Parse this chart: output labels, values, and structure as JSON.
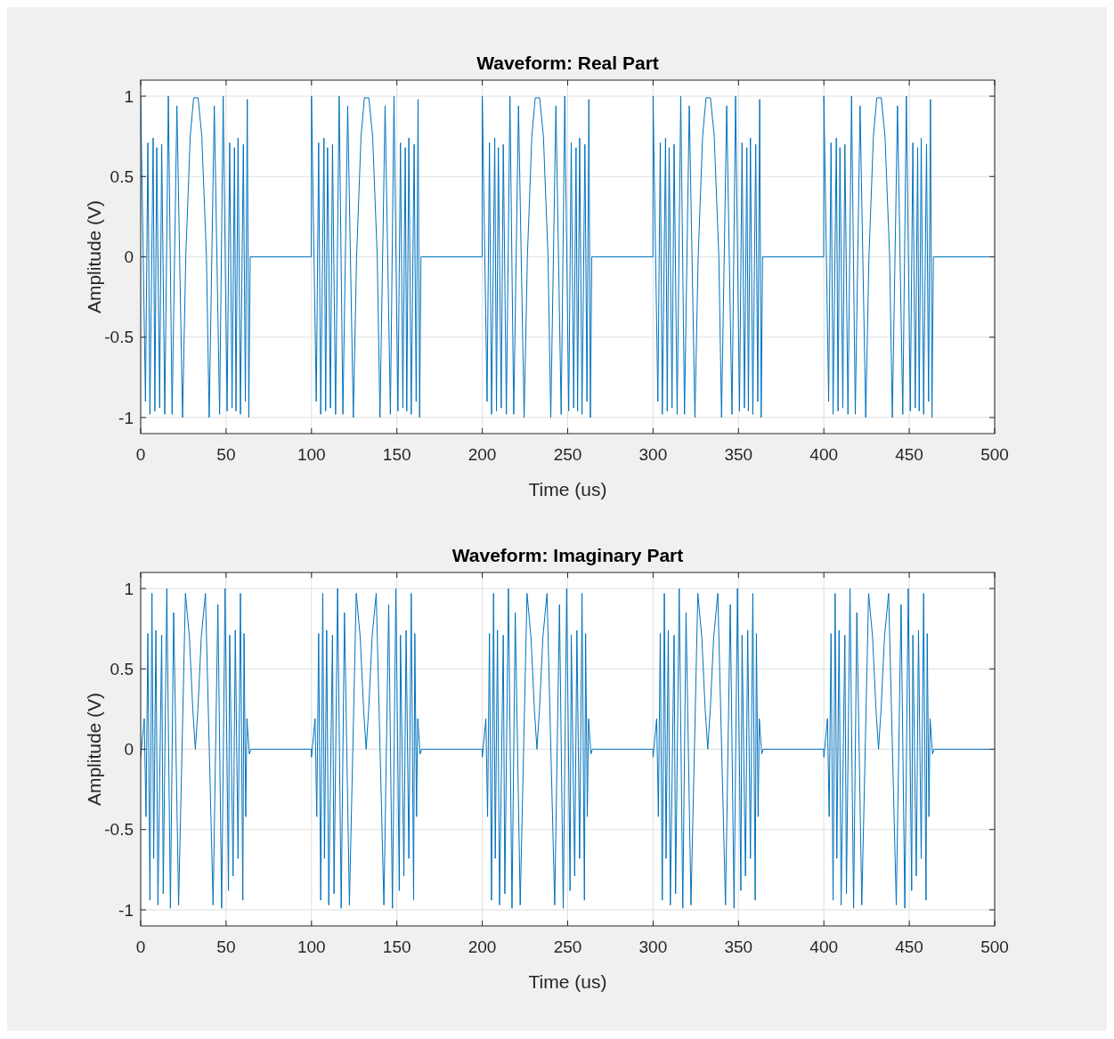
{
  "chart_data": [
    {
      "type": "line",
      "title": "Waveform: Real Part",
      "xlabel": "Time (us)",
      "ylabel": "Amplitude (V)",
      "xlim": [
        0,
        500
      ],
      "ylim": [
        -1.1,
        1.1
      ],
      "xticks": [
        0,
        50,
        100,
        150,
        200,
        250,
        300,
        350,
        400,
        450,
        500
      ],
      "yticks": [
        -1,
        -0.5,
        0,
        0.5,
        1
      ],
      "grid": true,
      "line_style": "solid",
      "marker": "none",
      "series": [
        {
          "color": "#0072bd",
          "x": [
            0,
            2.8,
            4.2,
            5.4,
            7.3,
            8.3,
            9.4,
            11.1,
            12.3,
            14.1,
            16.2,
            18.4,
            21.2,
            24.5,
            26.4,
            29,
            31,
            33.6,
            35.8,
            38.5,
            40.1,
            43.1,
            46.2,
            48.3,
            50.6,
            52.1,
            53.5,
            54.9,
            55.8,
            57,
            58.4,
            60.1,
            61.3,
            62.4,
            63.3,
            64.1,
            99.9,
            100,
            102.8,
            104.2,
            105.4,
            107.3,
            108.3,
            109.4,
            111.1,
            112.3,
            114.1,
            116.2,
            118.4,
            121.2,
            124.5,
            126.4,
            129,
            131,
            133.6,
            135.8,
            138.5,
            140.1,
            143.1,
            146.2,
            148.3,
            150.6,
            152.1,
            153.5,
            154.9,
            155.8,
            157,
            158.4,
            160.1,
            161.3,
            162.4,
            163.3,
            164.1,
            199.9,
            200,
            202.8,
            204.2,
            205.4,
            207.3,
            208.3,
            209.4,
            211.1,
            212.3,
            214.1,
            216.2,
            218.4,
            221.2,
            224.5,
            226.4,
            229,
            231,
            233.6,
            235.8,
            238.5,
            240.1,
            243.1,
            246.2,
            248.3,
            250.6,
            252.1,
            253.5,
            254.9,
            255.8,
            257,
            258.4,
            260.1,
            261.3,
            262.4,
            263.3,
            264.1,
            299.9,
            300,
            302.8,
            304.2,
            305.4,
            307.3,
            308.3,
            309.4,
            311.1,
            312.3,
            314.1,
            316.2,
            318.4,
            321.2,
            324.5,
            326.4,
            329,
            331,
            333.6,
            335.8,
            338.5,
            340.1,
            343.1,
            346.2,
            348.3,
            350.6,
            352.1,
            353.5,
            354.9,
            355.8,
            357,
            358.4,
            360.1,
            361.3,
            362.4,
            363.3,
            364.1,
            399.9,
            400,
            402.8,
            404.2,
            405.4,
            407.3,
            408.3,
            409.4,
            411.1,
            412.3,
            414.1,
            416.2,
            418.4,
            421.2,
            424.5,
            426.4,
            429,
            431,
            433.6,
            435.8,
            438.5,
            440.1,
            443.1,
            446.2,
            448.3,
            450.6,
            452.1,
            453.5,
            454.9,
            455.8,
            457,
            458.4,
            460.1,
            461.3,
            462.4,
            463.3,
            464.1,
            500
          ],
          "values": [
            1,
            -0.9,
            0.71,
            -0.98,
            0.74,
            -0.96,
            0.68,
            -0.94,
            0.7,
            -0.98,
            1,
            -0.98,
            0.94,
            -1,
            0,
            0.75,
            0.99,
            0.99,
            0.75,
            0,
            -1,
            0.94,
            -0.98,
            1,
            -0.96,
            0.71,
            -0.94,
            0.68,
            -0.96,
            0.74,
            -0.98,
            0.7,
            -0.9,
            0.98,
            -1,
            0,
            0,
            1,
            -0.9,
            0.71,
            -0.98,
            0.74,
            -0.96,
            0.68,
            -0.94,
            0.7,
            -0.98,
            1,
            -0.98,
            0.94,
            -1,
            0,
            0.75,
            0.99,
            0.99,
            0.75,
            0,
            -1,
            0.94,
            -0.98,
            1,
            -0.96,
            0.71,
            -0.94,
            0.68,
            -0.96,
            0.74,
            -0.98,
            0.7,
            -0.9,
            0.98,
            -1,
            0,
            0,
            1,
            -0.9,
            0.71,
            -0.98,
            0.74,
            -0.96,
            0.68,
            -0.94,
            0.7,
            -0.98,
            1,
            -0.98,
            0.94,
            -1,
            0,
            0.75,
            0.99,
            0.99,
            0.75,
            0,
            -1,
            0.94,
            -0.98,
            1,
            -0.96,
            0.71,
            -0.94,
            0.68,
            -0.96,
            0.74,
            -0.98,
            0.7,
            -0.9,
            0.98,
            -1,
            0,
            0,
            1,
            -0.9,
            0.71,
            -0.98,
            0.74,
            -0.96,
            0.68,
            -0.94,
            0.7,
            -0.98,
            1,
            -0.98,
            0.94,
            -1,
            0,
            0.75,
            0.99,
            0.99,
            0.75,
            0,
            -1,
            0.94,
            -0.98,
            1,
            -0.96,
            0.71,
            -0.94,
            0.68,
            -0.96,
            0.74,
            -0.98,
            0.7,
            -0.9,
            0.98,
            -1,
            0,
            0,
            1,
            -0.9,
            0.71,
            -0.98,
            0.74,
            -0.96,
            0.68,
            -0.94,
            0.7,
            -0.98,
            1,
            -0.98,
            0.94,
            -1,
            0,
            0.75,
            0.99,
            0.99,
            0.75,
            0,
            -1,
            0.94,
            -0.98,
            1,
            -0.96,
            0.71,
            -0.94,
            0.68,
            -0.96,
            0.74,
            -0.98,
            0.7,
            -0.9,
            0.98,
            -1,
            0,
            0
          ]
        }
      ]
    },
    {
      "type": "line",
      "title": "Waveform: Imaginary Part",
      "xlabel": "Time (us)",
      "ylabel": "Amplitude (V)",
      "xlim": [
        0,
        500
      ],
      "ylim": [
        -1.1,
        1.1
      ],
      "xticks": [
        0,
        50,
        100,
        150,
        200,
        250,
        300,
        350,
        400,
        450,
        500
      ],
      "yticks": [
        -1,
        -0.5,
        0,
        0.5,
        1
      ],
      "grid": true,
      "line_style": "solid",
      "marker": "none",
      "series": [
        {
          "color": "#0072bd",
          "x": [
            0,
            2.1,
            3.1,
            4.2,
            5.4,
            6.6,
            7.6,
            8.9,
            10.1,
            12.3,
            13.2,
            15.3,
            17.4,
            19.3,
            22.2,
            26.2,
            28.5,
            30.5,
            32,
            33.5,
            35.5,
            37.9,
            42.4,
            45.2,
            47.4,
            49.4,
            51.4,
            52.1,
            54.1,
            55.4,
            57,
            58.4,
            59.8,
            60.5,
            61.5,
            62.2,
            63.6,
            64.5,
            99.9,
            100,
            102.1,
            103.1,
            104.2,
            105.4,
            106.6,
            107.6,
            108.9,
            110.1,
            112.3,
            113.2,
            115.3,
            117.4,
            119.3,
            122.2,
            126.2,
            128.5,
            130.5,
            132,
            133.5,
            135.5,
            137.9,
            142.4,
            145.2,
            147.4,
            149.4,
            151.4,
            152.1,
            154.1,
            155.4,
            157,
            158.4,
            159.8,
            160.5,
            161.5,
            162.2,
            163.6,
            164.5,
            199.9,
            200,
            202.1,
            203.1,
            204.2,
            205.4,
            206.6,
            207.6,
            208.9,
            210.1,
            212.3,
            213.2,
            215.3,
            217.4,
            219.3,
            222.2,
            226.2,
            228.5,
            230.5,
            232,
            233.5,
            235.5,
            237.9,
            242.4,
            245.2,
            247.4,
            249.4,
            251.4,
            252.1,
            254.1,
            255.4,
            257,
            258.4,
            259.8,
            260.5,
            261.5,
            262.2,
            263.6,
            264.5,
            299.9,
            300,
            302.1,
            303.1,
            304.2,
            305.4,
            306.6,
            307.6,
            308.9,
            310.1,
            312.3,
            313.2,
            315.3,
            317.4,
            319.3,
            322.2,
            326.2,
            328.5,
            330.5,
            332,
            333.5,
            335.5,
            337.9,
            342.4,
            345.2,
            347.4,
            349.4,
            351.4,
            352.1,
            354.1,
            355.4,
            357,
            358.4,
            359.8,
            360.5,
            361.5,
            362.2,
            363.6,
            364.5,
            399.9,
            400,
            402.1,
            403.1,
            404.2,
            405.4,
            406.6,
            407.6,
            408.9,
            410.1,
            412.3,
            413.2,
            415.3,
            417.4,
            419.3,
            422.2,
            426.2,
            428.5,
            430.5,
            432,
            433.5,
            435.5,
            437.9,
            442.4,
            445.2,
            447.4,
            449.4,
            451.4,
            452.1,
            454.1,
            455.4,
            457,
            458.4,
            459.8,
            460.5,
            461.5,
            462.2,
            463.6,
            464.5,
            500
          ],
          "values": [
            -0.05,
            0.19,
            -0.42,
            0.72,
            -0.94,
            0.97,
            -0.68,
            0.74,
            -0.97,
            0.71,
            -0.9,
            1,
            -0.99,
            0.85,
            -0.97,
            0.97,
            0.7,
            0.25,
            0,
            0.25,
            0.7,
            0.97,
            -0.97,
            0.9,
            -0.99,
            1,
            -0.88,
            0.71,
            -0.79,
            0.74,
            -0.68,
            0.97,
            -0.94,
            0.72,
            -0.42,
            0.19,
            -0.03,
            0,
            0,
            -0.05,
            0.19,
            -0.42,
            0.72,
            -0.94,
            0.97,
            -0.68,
            0.74,
            -0.97,
            0.71,
            -0.9,
            1,
            -0.99,
            0.85,
            -0.97,
            0.97,
            0.7,
            0.25,
            0,
            0.25,
            0.7,
            0.97,
            -0.97,
            0.9,
            -0.99,
            1,
            -0.88,
            0.71,
            -0.79,
            0.74,
            -0.68,
            0.97,
            -0.94,
            0.72,
            -0.42,
            0.19,
            -0.03,
            0,
            0,
            -0.05,
            0.19,
            -0.42,
            0.72,
            -0.94,
            0.97,
            -0.68,
            0.74,
            -0.97,
            0.71,
            -0.9,
            1,
            -0.99,
            0.85,
            -0.97,
            0.97,
            0.7,
            0.25,
            0,
            0.25,
            0.7,
            0.97,
            -0.97,
            0.9,
            -0.99,
            1,
            -0.88,
            0.71,
            -0.79,
            0.74,
            -0.68,
            0.97,
            -0.94,
            0.72,
            -0.42,
            0.19,
            -0.03,
            0,
            0,
            -0.05,
            0.19,
            -0.42,
            0.72,
            -0.94,
            0.97,
            -0.68,
            0.74,
            -0.97,
            0.71,
            -0.9,
            1,
            -0.99,
            0.85,
            -0.97,
            0.97,
            0.7,
            0.25,
            0,
            0.25,
            0.7,
            0.97,
            -0.97,
            0.9,
            -0.99,
            1,
            -0.88,
            0.71,
            -0.79,
            0.74,
            -0.68,
            0.97,
            -0.94,
            0.72,
            -0.42,
            0.19,
            -0.03,
            0,
            0,
            -0.05,
            0.19,
            -0.42,
            0.72,
            -0.94,
            0.97,
            -0.68,
            0.74,
            -0.97,
            0.71,
            -0.9,
            1,
            -0.99,
            0.85,
            -0.97,
            0.97,
            0.7,
            0.25,
            0,
            0.25,
            0.7,
            0.97,
            -0.97,
            0.9,
            -0.99,
            1,
            -0.88,
            0.71,
            -0.79,
            0.74,
            -0.68,
            0.97,
            -0.94,
            0.72,
            -0.42,
            0.19,
            -0.03,
            0,
            0
          ]
        }
      ]
    }
  ]
}
